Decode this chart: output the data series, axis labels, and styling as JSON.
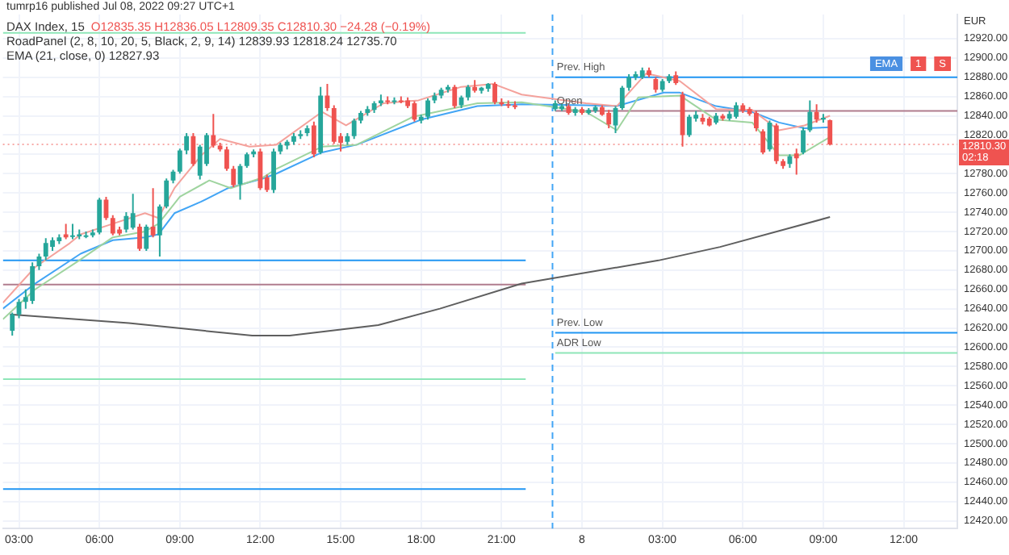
{
  "chart_data": {
    "type": "candlestick",
    "title": "DAX Index, 15",
    "subtitle": "O12835.35 H12836.05 L12809.35 C12810.30 −24.28 (−0.19%)",
    "ylabel": "EUR",
    "annotations": [
      "tumrp16 published Jul 08, 2022 09:27 UTC+1",
      "RoadPanel (2, 8, 10, 20, 5, Black, 2, 9, 14) 12839.93 12818.24 12735.70",
      "EMA (21, close, 0) 12827.93",
      "EMA",
      "1",
      "S",
      {
        "text": "Prev. High",
        "x": "2022-07-07T23:00",
        "y": 12880
      },
      {
        "text": "Open",
        "x": "2022-07-07T23:00",
        "y": 12845
      },
      {
        "text": "Prev. Low",
        "x": "2022-07-07T23:00",
        "y": 12615
      },
      {
        "text": "ADR Low",
        "x": "2022-07-07T23:00",
        "y": 12594
      }
    ],
    "x": [
      "2022-07-07T02:45",
      "2022-07-07T03:00",
      "2022-07-07T03:15",
      "2022-07-07T03:30",
      "2022-07-07T03:45",
      "2022-07-07T04:00",
      "2022-07-07T04:15",
      "2022-07-07T04:30",
      "2022-07-07T04:45",
      "2022-07-07T05:00",
      "2022-07-07T05:15",
      "2022-07-07T05:30",
      "2022-07-07T05:45",
      "2022-07-07T06:00",
      "2022-07-07T06:15",
      "2022-07-07T06:30",
      "2022-07-07T06:45",
      "2022-07-07T07:00",
      "2022-07-07T07:15",
      "2022-07-07T07:30",
      "2022-07-07T07:45",
      "2022-07-07T08:00",
      "2022-07-07T08:15",
      "2022-07-07T08:30",
      "2022-07-07T08:45",
      "2022-07-07T09:00",
      "2022-07-07T09:15",
      "2022-07-07T09:30",
      "2022-07-07T09:45",
      "2022-07-07T10:00",
      "2022-07-07T10:15",
      "2022-07-07T10:30",
      "2022-07-07T10:45",
      "2022-07-07T11:00",
      "2022-07-07T11:15",
      "2022-07-07T11:30",
      "2022-07-07T11:45",
      "2022-07-07T12:00",
      "2022-07-07T12:15",
      "2022-07-07T12:30",
      "2022-07-07T12:45",
      "2022-07-07T13:00",
      "2022-07-07T13:15",
      "2022-07-07T13:30",
      "2022-07-07T13:45",
      "2022-07-07T14:00",
      "2022-07-07T14:15",
      "2022-07-07T14:30",
      "2022-07-07T14:45",
      "2022-07-07T15:00",
      "2022-07-07T15:15",
      "2022-07-07T15:30",
      "2022-07-07T15:45",
      "2022-07-07T16:00",
      "2022-07-07T16:15",
      "2022-07-07T16:30",
      "2022-07-07T16:45",
      "2022-07-07T17:00",
      "2022-07-07T17:15",
      "2022-07-07T17:30",
      "2022-07-07T17:45",
      "2022-07-07T18:00",
      "2022-07-07T18:15",
      "2022-07-07T18:30",
      "2022-07-07T18:45",
      "2022-07-07T19:00",
      "2022-07-07T19:15",
      "2022-07-07T19:30",
      "2022-07-07T19:45",
      "2022-07-07T20:00",
      "2022-07-07T20:15",
      "2022-07-07T20:30",
      "2022-07-07T20:45",
      "2022-07-07T21:00",
      "2022-07-07T21:15",
      "2022-07-07T21:30",
      "2022-07-07T23:00",
      "2022-07-07T23:15",
      "2022-07-07T23:30",
      "2022-07-07T23:45",
      "2022-07-08T00:00",
      "2022-07-08T00:15",
      "2022-07-08T00:30",
      "2022-07-08T00:45",
      "2022-07-08T01:00",
      "2022-07-08T01:15",
      "2022-07-08T01:30",
      "2022-07-08T01:45",
      "2022-07-08T02:00",
      "2022-07-08T02:15",
      "2022-07-08T02:30",
      "2022-07-08T02:45",
      "2022-07-08T03:00",
      "2022-07-08T03:15",
      "2022-07-08T03:30",
      "2022-07-08T03:45",
      "2022-07-08T04:00",
      "2022-07-08T04:15",
      "2022-07-08T04:30",
      "2022-07-08T04:45",
      "2022-07-08T05:00",
      "2022-07-08T05:15",
      "2022-07-08T05:30",
      "2022-07-08T05:45",
      "2022-07-08T06:00",
      "2022-07-08T06:15",
      "2022-07-08T06:30",
      "2022-07-08T06:45",
      "2022-07-08T07:00",
      "2022-07-08T07:15",
      "2022-07-08T07:30",
      "2022-07-08T07:45",
      "2022-07-08T08:00",
      "2022-07-08T08:15",
      "2022-07-08T08:30",
      "2022-07-08T08:45",
      "2022-07-08T09:00",
      "2022-07-08T09:15"
    ],
    "ohlc": [
      [
        12617,
        12636,
        12612,
        12634
      ],
      [
        12634,
        12650,
        12630,
        12647
      ],
      [
        12647,
        12660,
        12640,
        12652
      ],
      [
        12648,
        12688,
        12645,
        12684
      ],
      [
        12684,
        12697,
        12680,
        12694
      ],
      [
        12694,
        12713,
        12690,
        12708
      ],
      [
        12704,
        12714,
        12700,
        12711
      ],
      [
        12710,
        12717,
        12707,
        12714
      ],
      [
        12717,
        12728,
        12712,
        12714
      ],
      [
        12716,
        12728,
        12712,
        12716
      ],
      [
        12715,
        12722,
        12712,
        12717
      ],
      [
        12716,
        12720,
        12713,
        12716
      ],
      [
        12716,
        12722,
        12714,
        12719
      ],
      [
        12719,
        12755,
        12717,
        12753
      ],
      [
        12753,
        12756,
        12732,
        12734
      ],
      [
        12734,
        12737,
        12716,
        12718
      ],
      [
        12722,
        12725,
        12716,
        12718
      ],
      [
        12722,
        12740,
        12719,
        12736
      ],
      [
        12724,
        12759,
        12722,
        12739
      ],
      [
        12725,
        12728,
        12700,
        12702
      ],
      [
        12702,
        12727,
        12700,
        12725
      ],
      [
        12725,
        12765,
        12714,
        12716
      ],
      [
        12716,
        12748,
        12694,
        12746
      ],
      [
        12746,
        12775,
        12744,
        12773
      ],
      [
        12773,
        12784,
        12770,
        12782
      ],
      [
        12782,
        12806,
        12780,
        12804
      ],
      [
        12804,
        12822,
        12800,
        12819
      ],
      [
        12819,
        12822,
        12788,
        12790
      ],
      [
        12778,
        12810,
        12774,
        12808
      ],
      [
        12790,
        12822,
        12788,
        12820
      ],
      [
        12820,
        12842,
        12807,
        12809
      ],
      [
        12809,
        12812,
        12803,
        12805
      ],
      [
        12805,
        12808,
        12783,
        12785
      ],
      [
        12785,
        12788,
        12766,
        12768
      ],
      [
        12769,
        12790,
        12753,
        12788
      ],
      [
        12788,
        12802,
        12786,
        12800
      ],
      [
        12800,
        12805,
        12797,
        12803
      ],
      [
        12803,
        12806,
        12763,
        12765
      ],
      [
        12776,
        12779,
        12761,
        12763
      ],
      [
        12763,
        12806,
        12760,
        12803
      ],
      [
        12803,
        12812,
        12800,
        12810
      ],
      [
        12809,
        12815,
        12805,
        12813
      ],
      [
        12813,
        12822,
        12810,
        12819
      ],
      [
        12819,
        12825,
        12816,
        12821
      ],
      [
        12822,
        12830,
        12819,
        12827
      ],
      [
        12830,
        12834,
        12797,
        12800
      ],
      [
        12802,
        12870,
        12800,
        12861
      ],
      [
        12861,
        12873,
        12845,
        12848
      ],
      [
        12848,
        12851,
        12811,
        12813
      ],
      [
        12819,
        12822,
        12803,
        12812
      ],
      [
        12813,
        12822,
        12810,
        12819
      ],
      [
        12819,
        12837,
        12816,
        12835
      ],
      [
        12835,
        12845,
        12832,
        12843
      ],
      [
        12843,
        12850,
        12840,
        12847
      ],
      [
        12846,
        12855,
        12843,
        12853
      ],
      [
        12853,
        12862,
        12850,
        12856
      ],
      [
        12856,
        12860,
        12852,
        12855
      ],
      [
        12855,
        12859,
        12852,
        12856
      ],
      [
        12856,
        12860,
        12853,
        12855
      ],
      [
        12856,
        12859,
        12848,
        12850
      ],
      [
        12853,
        12855,
        12834,
        12836
      ],
      [
        12835,
        12841,
        12832,
        12839
      ],
      [
        12839,
        12858,
        12836,
        12856
      ],
      [
        12856,
        12864,
        12853,
        12861
      ],
      [
        12861,
        12869,
        12858,
        12867
      ],
      [
        12867,
        12872,
        12864,
        12870
      ],
      [
        12870,
        12872,
        12848,
        12850
      ],
      [
        12851,
        12861,
        12848,
        12859
      ],
      [
        12859,
        12872,
        12856,
        12870
      ],
      [
        12870,
        12877,
        12864,
        12866
      ],
      [
        12866,
        12870,
        12863,
        12869
      ],
      [
        12868,
        12874,
        12865,
        12873
      ],
      [
        12873,
        12875,
        12852,
        12854
      ],
      [
        12854,
        12858,
        12850,
        12852
      ],
      [
        12852,
        12856,
        12848,
        12851
      ],
      [
        12851,
        12855,
        12847,
        12849
      ],
      [
        12847,
        12856,
        12845,
        12853
      ],
      [
        12847,
        12853,
        12845,
        12850
      ],
      [
        12850,
        12852,
        12841,
        12843
      ],
      [
        12843,
        12849,
        12840,
        12847
      ],
      [
        12847,
        12849,
        12841,
        12843
      ],
      [
        12843,
        12848,
        12841,
        12846
      ],
      [
        12845,
        12851,
        12843,
        12849
      ],
      [
        12849,
        12851,
        12840,
        12841
      ],
      [
        12843,
        12846,
        12827,
        12831
      ],
      [
        12830,
        12850,
        12822,
        12848
      ],
      [
        12848,
        12871,
        12846,
        12869
      ],
      [
        12869,
        12883,
        12866,
        12880
      ],
      [
        12880,
        12886,
        12877,
        12883
      ],
      [
        12880,
        12890,
        12878,
        12887
      ],
      [
        12887,
        12890,
        12880,
        12882
      ],
      [
        12878,
        12880,
        12864,
        12867
      ],
      [
        12867,
        12878,
        12865,
        12876
      ],
      [
        12876,
        12883,
        12874,
        12881
      ],
      [
        12882,
        12886,
        12872,
        12874
      ],
      [
        12862,
        12865,
        12808,
        12820
      ],
      [
        12820,
        12841,
        12818,
        12839
      ],
      [
        12837,
        12845,
        12834,
        12841
      ],
      [
        12838,
        12842,
        12831,
        12834
      ],
      [
        12837,
        12839,
        12829,
        12830
      ],
      [
        12833,
        12843,
        12831,
        12840
      ],
      [
        12840,
        12842,
        12835,
        12837
      ],
      [
        12837,
        12845,
        12835,
        12842
      ],
      [
        12839,
        12854,
        12837,
        12851
      ],
      [
        12851,
        12853,
        12843,
        12845
      ],
      [
        12847,
        12849,
        12840,
        12842
      ],
      [
        12843,
        12845,
        12824,
        12827
      ],
      [
        12824,
        12826,
        12800,
        12802
      ],
      [
        12805,
        12835,
        12803,
        12833
      ],
      [
        12830,
        12832,
        12790,
        12793
      ],
      [
        12793,
        12795,
        12785,
        12788
      ],
      [
        12790,
        12800,
        12786,
        12798
      ],
      [
        12801,
        12806,
        12779,
        12796
      ],
      [
        12802,
        12828,
        12800,
        12825
      ],
      [
        12825,
        12856,
        12823,
        12844
      ],
      [
        12844,
        12852,
        12833,
        12836
      ],
      [
        12836,
        12842,
        12833,
        12838
      ],
      [
        12835.35,
        12836.05,
        12809.35,
        12810.3
      ]
    ],
    "series": [
      {
        "type": "line",
        "color": "#5e5e5e",
        "x": [
          "2022-07-07T02:40",
          "2022-07-07T07:06",
          "2022-07-07T11:42",
          "2022-07-07T13:06",
          "2022-07-07T16:24",
          "2022-07-07T18:42",
          "2022-07-07T21:45",
          "2022-07-08T02:51",
          "2022-07-08T05:09",
          "2022-07-08T09:15"
        ],
        "values": [
          12634,
          12625,
          12612,
          12612,
          12623,
          12640,
          12666,
          12690,
          12704,
          12735
        ]
      },
      {
        "type": "line",
        "color": "#f4a29c",
        "x": [
          "2022-07-07T02:24",
          "2022-07-07T03:36",
          "2022-07-07T04:54",
          "2022-07-07T05:18",
          "2022-07-07T06:30",
          "2022-07-07T07:42",
          "2022-07-07T08:12",
          "2022-07-07T08:48",
          "2022-07-07T09:48",
          "2022-07-07T10:30",
          "2022-07-07T11:36",
          "2022-07-07T12:36",
          "2022-07-07T14:18",
          "2022-07-07T15:12",
          "2022-07-07T16:36",
          "2022-07-07T17:54",
          "2022-07-07T19:30",
          "2022-07-07T20:42",
          "2022-07-07T21:45",
          "2022-07-08T00:09",
          "2022-07-08T01:18",
          "2022-07-08T02:24",
          "2022-07-08T03:39",
          "2022-07-08T05:00",
          "2022-07-08T06:21",
          "2022-07-08T07:21",
          "2022-07-08T08:18",
          "2022-07-08T09:15"
        ],
        "values": [
          12646,
          12683,
          12708,
          12717,
          12728,
          12739,
          12734,
          12765,
          12799,
          12816,
          12808,
          12810,
          12844,
          12830,
          12853,
          12856,
          12870,
          12873,
          12862,
          12853,
          12850,
          12884,
          12876,
          12847,
          12846,
          12825,
          12830,
          12840
        ]
      },
      {
        "type": "line",
        "color": "#9fd49f",
        "x": [
          "2022-07-07T02:24",
          "2022-07-07T03:36",
          "2022-07-07T05:18",
          "2022-07-07T06:30",
          "2022-07-07T07:42",
          "2022-07-07T08:12",
          "2022-07-07T09:00",
          "2022-07-07T10:06",
          "2022-07-07T10:54",
          "2022-07-07T12:06",
          "2022-07-07T12:36",
          "2022-07-07T14:18",
          "2022-07-07T15:36",
          "2022-07-07T17:42",
          "2022-07-07T20:06",
          "2022-07-07T21:45",
          "2022-07-08T00:09",
          "2022-07-08T01:18",
          "2022-07-08T02:06",
          "2022-07-08T03:39",
          "2022-07-08T05:00",
          "2022-07-08T06:21",
          "2022-07-08T07:21",
          "2022-07-08T08:06",
          "2022-07-08T09:15"
        ],
        "values": [
          12629,
          12660,
          12691,
          12714,
          12720,
          12728,
          12756,
          12773,
          12765,
          12776,
          12785,
          12808,
          12810,
          12839,
          12853,
          12854,
          12844,
          12825,
          12859,
          12861,
          12836,
          12833,
          12799,
          12799,
          12818
        ]
      },
      {
        "type": "line",
        "color": "#42a5f5",
        "x": [
          "2022-07-07T02:24",
          "2022-07-07T03:36",
          "2022-07-07T05:18",
          "2022-07-07T06:30",
          "2022-07-07T07:42",
          "2022-07-07T08:12",
          "2022-07-07T08:48",
          "2022-07-07T09:48",
          "2022-07-07T10:48",
          "2022-07-07T12:06",
          "2022-07-07T12:36",
          "2022-07-07T14:18",
          "2022-07-07T15:36",
          "2022-07-07T18:00",
          "2022-07-07T20:06",
          "2022-07-07T21:45",
          "2022-07-08T00:09",
          "2022-07-08T01:18",
          "2022-07-08T03:03",
          "2022-07-08T03:39",
          "2022-07-08T05:00",
          "2022-07-08T06:21",
          "2022-07-08T07:21",
          "2022-07-08T08:18",
          "2022-07-08T09:15"
        ],
        "values": [
          12640,
          12666,
          12697,
          12711,
          12714,
          12717,
          12739,
          12751,
          12765,
          12775,
          12780,
          12802,
          12810,
          12836,
          12850,
          12852,
          12851,
          12850,
          12864,
          12864,
          12850,
          12844,
          12833,
          12827,
          12828
        ]
      },
      {
        "type": "line",
        "color": "#2196f3",
        "x": [
          "2022-07-07T02:24",
          "2022-07-07T21:54"
        ],
        "values": [
          12690,
          12690
        ]
      },
      {
        "type": "line",
        "color": "#b07c8e",
        "x": [
          "2022-07-07T02:24",
          "2022-07-07T21:54"
        ],
        "values": [
          12665,
          12665
        ]
      },
      {
        "type": "line",
        "color": "#8ee6b8",
        "x": [
          "2022-07-07T02:24",
          "2022-07-07T21:54"
        ],
        "values": [
          12567,
          12567
        ]
      },
      {
        "type": "line",
        "color": "#2196f3",
        "x": [
          "2022-07-07T02:24",
          "2022-07-07T21:54"
        ],
        "values": [
          12453,
          12453
        ]
      },
      {
        "type": "line",
        "color": "#8ee6b8",
        "x": [
          "2022-07-07T02:24",
          "2022-07-07T21:54"
        ],
        "values": [
          12926,
          12926
        ]
      },
      {
        "type": "line",
        "color": "#2196f3",
        "x": [
          "2022-07-07T23:00",
          "2022-07-08T14:00"
        ],
        "values": [
          12880,
          12880
        ]
      },
      {
        "type": "line",
        "color": "#b07c8e",
        "x": [
          "2022-07-07T23:00",
          "2022-07-08T14:00"
        ],
        "values": [
          12845,
          12845
        ]
      },
      {
        "type": "line",
        "color": "#2196f3",
        "x": [
          "2022-07-07T23:00",
          "2022-07-08T14:00"
        ],
        "values": [
          12615,
          12615
        ]
      },
      {
        "type": "line",
        "color": "#8ee6b8",
        "x": [
          "2022-07-07T23:00",
          "2022-07-08T14:00"
        ],
        "values": [
          12594,
          12594
        ]
      }
    ],
    "ref_lines": [
      {
        "axis": "y",
        "value": 12810.3,
        "label": "12810.30\n02:18",
        "color": "#ef5350",
        "line_style": "dotted"
      },
      {
        "axis": "x",
        "value": "2022-07-07T22:54",
        "color": "#42a5f5",
        "line_style": "dashed"
      }
    ],
    "xlim": [
      "2022-07-07T02:24",
      "2022-07-08T14:00"
    ],
    "ylim": [
      12412,
      12945
    ],
    "xticks": [
      {
        "value": "2022-07-07T03:00",
        "label": "03:00"
      },
      {
        "value": "2022-07-07T06:00",
        "label": "06:00"
      },
      {
        "value": "2022-07-07T09:00",
        "label": "09:00"
      },
      {
        "value": "2022-07-07T12:00",
        "label": "12:00"
      },
      {
        "value": "2022-07-07T15:00",
        "label": "15:00"
      },
      {
        "value": "2022-07-07T18:00",
        "label": "18:00"
      },
      {
        "value": "2022-07-07T21:00",
        "label": "21:00"
      },
      {
        "value": "2022-07-08T00:00",
        "label": "8"
      },
      {
        "value": "2022-07-08T03:00",
        "label": "03:00"
      },
      {
        "value": "2022-07-08T06:00",
        "label": "06:00"
      },
      {
        "value": "2022-07-08T09:00",
        "label": "09:00"
      },
      {
        "value": "2022-07-08T12:00",
        "label": "12:00"
      }
    ],
    "yticks": [
      {
        "value": 12420,
        "label": "12420.00"
      },
      {
        "value": 12440,
        "label": "12440.00"
      },
      {
        "value": 12460,
        "label": "12460.00"
      },
      {
        "value": 12480,
        "label": "12480.00"
      },
      {
        "value": 12500,
        "label": "12500.00"
      },
      {
        "value": 12520,
        "label": "12520.00"
      },
      {
        "value": 12540,
        "label": "12540.00"
      },
      {
        "value": 12560,
        "label": "12560.00"
      },
      {
        "value": 12580,
        "label": "12580.00"
      },
      {
        "value": 12600,
        "label": "12600.00"
      },
      {
        "value": 12620,
        "label": "12620.00"
      },
      {
        "value": 12640,
        "label": "12640.00"
      },
      {
        "value": 12660,
        "label": "12660.00"
      },
      {
        "value": 12680,
        "label": "12680.00"
      },
      {
        "value": 12700,
        "label": "12700.00"
      },
      {
        "value": 12720,
        "label": "12720.00"
      },
      {
        "value": 12740,
        "label": "12740.00"
      },
      {
        "value": 12760,
        "label": "12760.00"
      },
      {
        "value": 12780,
        "label": "12780.00"
      },
      {
        "value": 12800,
        "label": null
      },
      {
        "value": 12820,
        "label": "12820.00"
      },
      {
        "value": 12840,
        "label": "12840.00"
      },
      {
        "value": 12860,
        "label": "12860.00"
      },
      {
        "value": 12880,
        "label": "12880.00"
      },
      {
        "value": 12900,
        "label": "12900.00"
      },
      {
        "value": 12920,
        "label": "12920.00"
      }
    ],
    "grid": true
  }
}
